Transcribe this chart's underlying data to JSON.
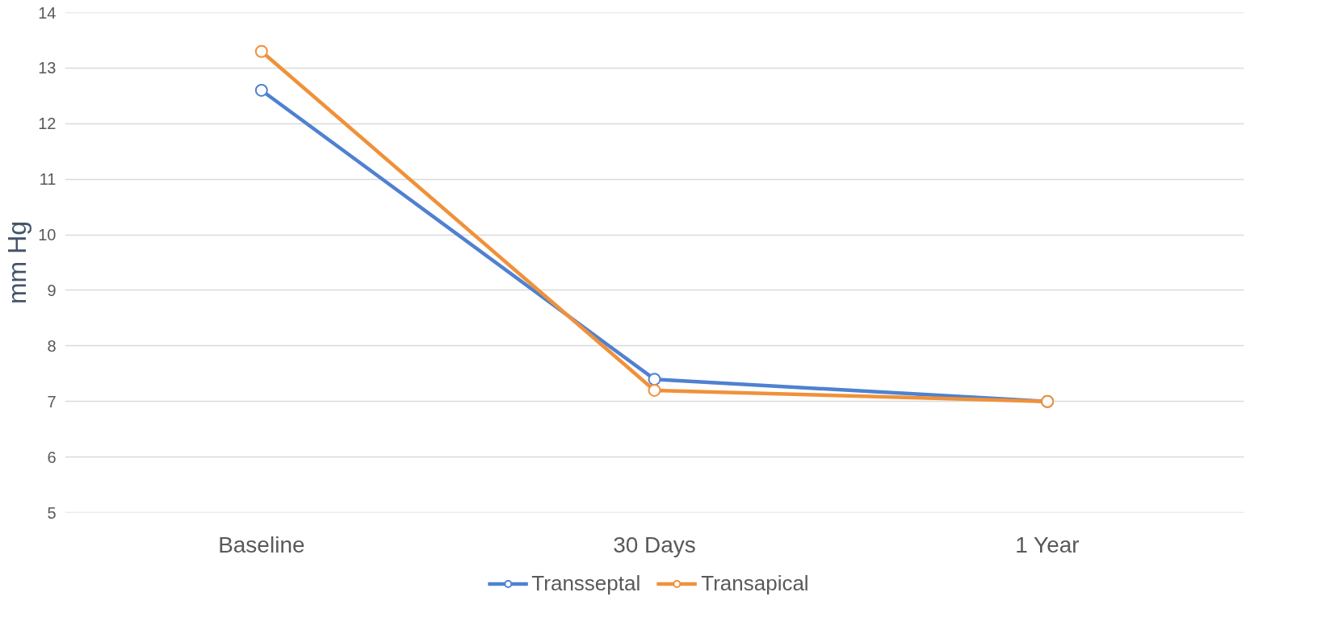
{
  "chart_data": {
    "type": "line",
    "ylabel": "mm Hg",
    "categories": [
      "Baseline",
      "30 Days",
      "1 Year"
    ],
    "series": [
      {
        "name": "Transseptal",
        "color": "#4f81d0",
        "values": [
          12.6,
          7.4,
          7.0
        ]
      },
      {
        "name": "Transapical",
        "color": "#f0913a",
        "values": [
          13.3,
          7.2,
          7.0
        ]
      }
    ],
    "ylim": [
      5,
      14
    ],
    "yticks": [
      5,
      6,
      7,
      8,
      9,
      10,
      11,
      12,
      13,
      14
    ],
    "grid": "y",
    "legend": "bottom",
    "marker": "circle",
    "line_style": "solid"
  }
}
